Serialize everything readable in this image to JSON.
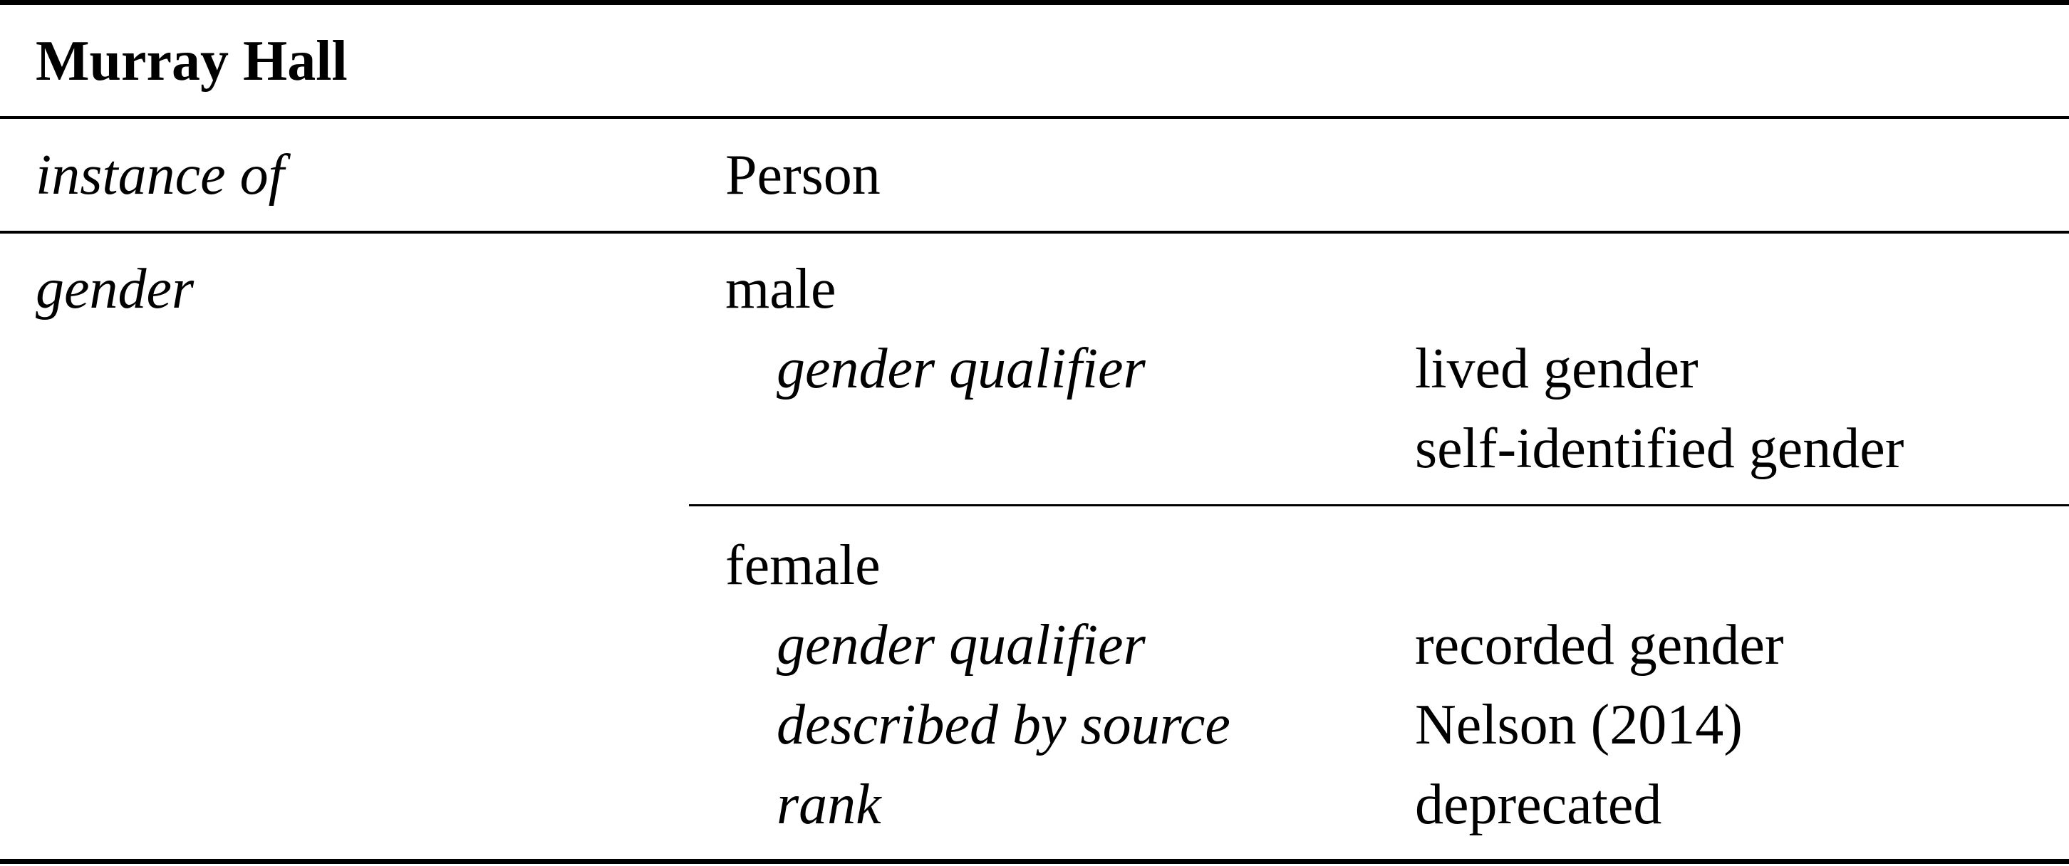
{
  "table": {
    "title": "Murray Hall",
    "rows": [
      {
        "property": "instance of",
        "value": "Person"
      },
      {
        "property": "gender",
        "statements": [
          {
            "value": "male",
            "qualifiers": [
              {
                "name": "gender qualifier",
                "values": [
                  "lived gender",
                  "self-identified gender"
                ]
              }
            ]
          },
          {
            "value": "female",
            "qualifiers": [
              {
                "name": "gender qualifier",
                "values": [
                  "recorded gender"
                ]
              },
              {
                "name": "described by source",
                "values": [
                  "Nelson (2014)"
                ]
              },
              {
                "name": "rank",
                "values": [
                  "deprecated"
                ]
              }
            ]
          }
        ]
      }
    ]
  }
}
